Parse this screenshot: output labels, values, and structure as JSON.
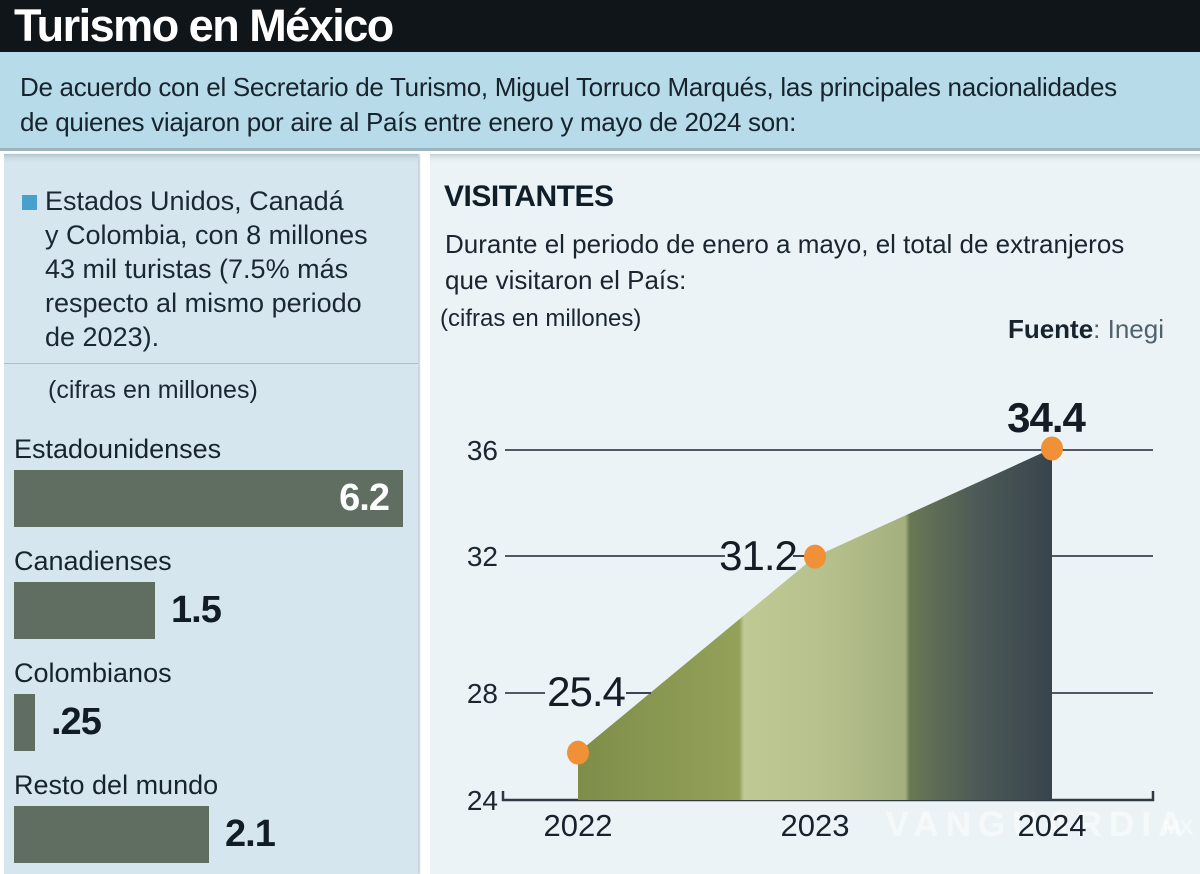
{
  "header": {
    "title": "Turismo en México",
    "subtitle_lines": [
      "De acuerdo con el Secretario de Turismo, Miguel Torruco Marqués, las principales nacionalidades",
      "de quienes viajaron por aire al País entre enero y mayo de 2024 son:"
    ]
  },
  "left_panel": {
    "bullet_lines": [
      "Estados Unidos, Canadá",
      "y Colombia, con 8 millones",
      "43 mil turistas (7.5% más",
      "respecto al mismo periodo",
      "de 2023)."
    ],
    "units_note": "(cifras en millones)"
  },
  "right_panel": {
    "heading": "VISITANTES",
    "description_lines": [
      "Durante el periodo de enero a mayo, el total de extranjeros",
      "que visitaron el País:"
    ],
    "units_note": "(cifras en millones)",
    "source_label": "Fuente",
    "source_value": ": Inegi"
  },
  "watermark": {
    "text": "VANGUARDIA",
    "suffix": "MX"
  },
  "colors": {
    "header_bar": "#10151a",
    "subtitle_band": "#b7dbe9",
    "left_panel_bg": "#d5e6ee",
    "right_panel_bg": "#ebf3f6",
    "bullet_blue": "#4aa0cd",
    "bar_green": "#5f6e61",
    "dot_orange": "#f09138",
    "ink": "#16222c",
    "area_gradient": [
      "#7e8e49",
      "#93a159",
      "#bfc994",
      "#b6c18d",
      "#a3b07e",
      "#697854",
      "#4d5a57",
      "#38444c"
    ]
  },
  "chart_data": [
    {
      "type": "bar",
      "title": "(cifras en millones)",
      "orientation": "horizontal",
      "categories": [
        "Estadounidenses",
        "Canadienses",
        "Colombianos",
        "Resto del mundo"
      ],
      "values": [
        6.2,
        1.5,
        0.25,
        2.1
      ],
      "value_labels": [
        "6.2",
        "1.5",
        ".25",
        "2.1"
      ],
      "bar_width_frac": [
        0.94,
        0.34,
        0.05,
        0.47
      ],
      "bar_color": "#5f6e61"
    },
    {
      "type": "area",
      "title": "VISITANTES",
      "x": [
        "2022",
        "2023",
        "2024"
      ],
      "values": [
        25.4,
        31.2,
        34.4
      ],
      "value_labels": [
        "25.4",
        "31.2",
        "34.4"
      ],
      "yticks": [
        24,
        28,
        32,
        36
      ],
      "ylim": [
        24,
        37
      ],
      "grid": "horizontal",
      "legend": "none",
      "point_color": "#f09138",
      "source": "Fuente: Inegi"
    }
  ]
}
